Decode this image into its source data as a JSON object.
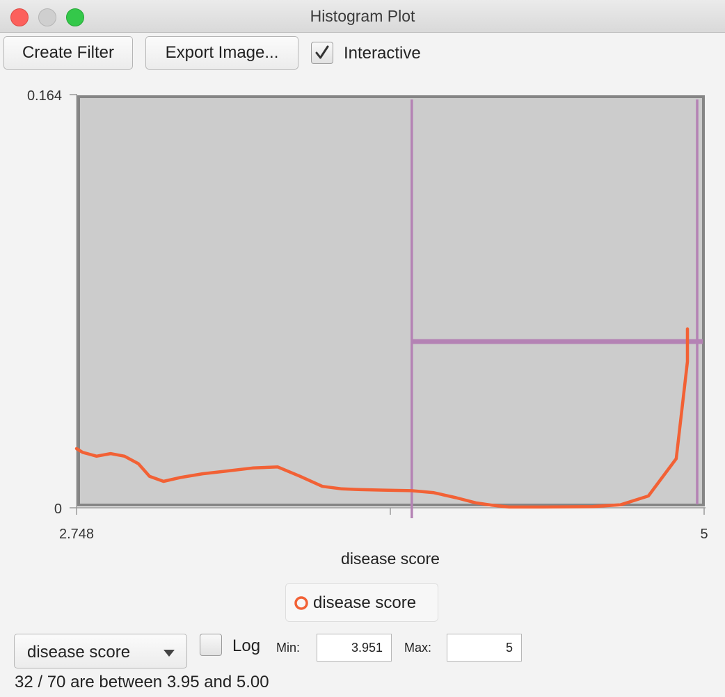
{
  "window": {
    "title": "Histogram Plot"
  },
  "toolbar": {
    "create_filter_label": "Create Filter",
    "export_image_label": "Export Image...",
    "interactive_label": "Interactive",
    "interactive_checked": true
  },
  "chart_data": {
    "type": "line",
    "xlabel": "disease score",
    "ylabel": "",
    "xlim": [
      2.748,
      5
    ],
    "ylim": [
      0,
      0.164
    ],
    "x_tick_labels": [
      "2.748",
      "5"
    ],
    "y_tick_labels": [
      "0.164",
      "0"
    ],
    "series": [
      {
        "color": "#f26135",
        "x": [
          2.748,
          2.77,
          2.82,
          2.87,
          2.92,
          2.97,
          3.01,
          3.06,
          3.12,
          3.2,
          3.28,
          3.38,
          3.47,
          3.55,
          3.63,
          3.7,
          3.77,
          3.85,
          3.95,
          4.03,
          4.11,
          4.18,
          4.24,
          4.3,
          4.36,
          4.42,
          4.5,
          4.6,
          4.7,
          4.8,
          4.9,
          4.97,
          5.0
        ],
        "y": [
          0.0235,
          0.022,
          0.0205,
          0.0215,
          0.0205,
          0.0175,
          0.0125,
          0.0105,
          0.012,
          0.0135,
          0.0145,
          0.0158,
          0.0162,
          0.0125,
          0.0085,
          0.0075,
          0.0072,
          0.007,
          0.0068,
          0.006,
          0.004,
          0.002,
          0.001,
          0.0003,
          0.0003,
          0.0003,
          0.0004,
          0.0005,
          0.0012,
          0.0047,
          0.0195,
          0.058,
          0.071
        ]
      }
    ],
    "selection": {
      "min": 3.951,
      "max": 5,
      "bar_height": 0.066,
      "color": "#b482b4"
    },
    "legend": {
      "position": "bottom-center",
      "entries": [
        "disease score"
      ]
    },
    "grid": false
  },
  "controls": {
    "column_dropdown_value": "disease score",
    "log_label": "Log",
    "log_checked": false,
    "min_label": "Min:",
    "min_value": "3.951",
    "max_label": "Max:",
    "max_value": "5"
  },
  "status": {
    "text": "32 / 70 are between 3.95 and 5.00"
  }
}
